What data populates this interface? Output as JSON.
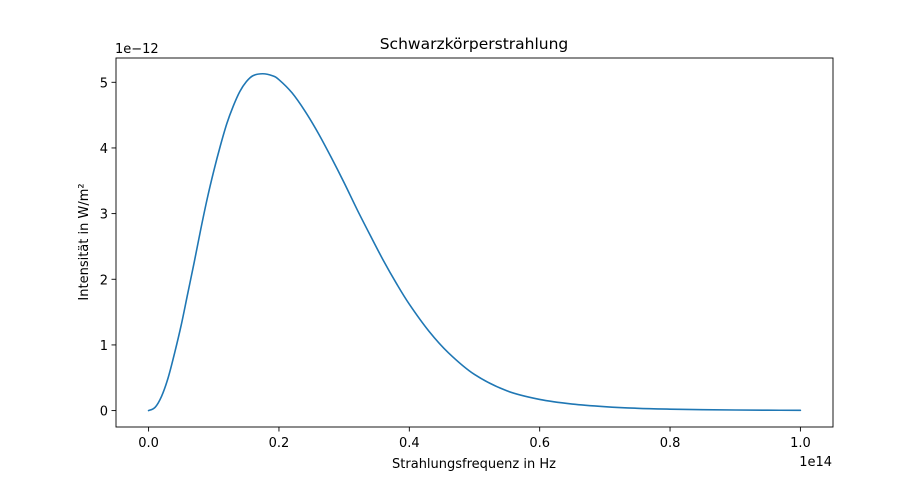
{
  "chart_data": {
    "type": "line",
    "title": "Schwarzkörperstrahlung",
    "xlabel": "Strahlungsfrequenz in Hz",
    "ylabel": "Intensität in W/m²",
    "x_offset_label": "1e14",
    "y_offset_label": "1e−12",
    "xlim": [
      -0.05,
      1.05
    ],
    "ylim": [
      -0.25,
      5.37
    ],
    "x_ticks": [
      0.0,
      0.2,
      0.4,
      0.6,
      0.8,
      1.0
    ],
    "x_tick_labels": [
      "0.0",
      "0.2",
      "0.4",
      "0.6",
      "0.8",
      "1.0"
    ],
    "y_ticks": [
      0,
      1,
      2,
      3,
      4,
      5
    ],
    "y_tick_labels": [
      "0",
      "1",
      "2",
      "3",
      "4",
      "5"
    ],
    "grid": false,
    "line_color": "#1f77b4",
    "series": [
      {
        "x": [
          0.0,
          0.01,
          0.02,
          0.03,
          0.04,
          0.05,
          0.06,
          0.07,
          0.08,
          0.09,
          0.1,
          0.11,
          0.12,
          0.13,
          0.14,
          0.15,
          0.16,
          0.175,
          0.19,
          0.2,
          0.22,
          0.24,
          0.26,
          0.28,
          0.3,
          0.32,
          0.34,
          0.36,
          0.38,
          0.4,
          0.43,
          0.46,
          0.5,
          0.55,
          0.6,
          0.65,
          0.7,
          0.75,
          0.8,
          0.85,
          0.9,
          0.95,
          1.0
        ],
        "y": [
          0.0,
          0.05,
          0.22,
          0.5,
          0.88,
          1.3,
          1.78,
          2.26,
          2.76,
          3.23,
          3.65,
          4.03,
          4.37,
          4.64,
          4.86,
          5.01,
          5.1,
          5.13,
          5.1,
          5.04,
          4.84,
          4.56,
          4.23,
          3.86,
          3.47,
          3.06,
          2.67,
          2.29,
          1.94,
          1.62,
          1.21,
          0.88,
          0.55,
          0.3,
          0.17,
          0.1,
          0.06,
          0.035,
          0.022,
          0.014,
          0.009,
          0.006,
          0.004
        ]
      }
    ]
  }
}
